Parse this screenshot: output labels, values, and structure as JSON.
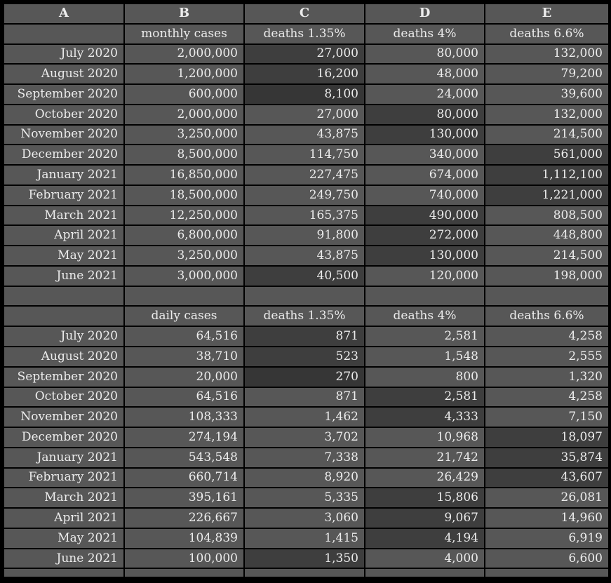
{
  "colors": {
    "grid": "#000000",
    "cell_base": "#575757",
    "cell_highlight": "#3e3e3e",
    "cell_highlight_darkest": "#363636",
    "text": "#ececec"
  },
  "spreadsheet": {
    "column_headers": [
      "A",
      "B",
      "C",
      "D",
      "E"
    ],
    "tables": [
      {
        "headers": {
          "b": "monthly cases",
          "c": "deaths 1.35%",
          "d": "deaths 4%",
          "e": "deaths 6.6%"
        },
        "rows": [
          {
            "label": "July 2020",
            "values": [
              "2,000,000",
              "27,000",
              "80,000",
              "132,000"
            ],
            "highlight": "C",
            "highlight_shade": "dark"
          },
          {
            "label": "August 2020",
            "values": [
              "1,200,000",
              "16,200",
              "48,000",
              "79,200"
            ],
            "highlight": "C",
            "highlight_shade": "dark"
          },
          {
            "label": "September 2020",
            "values": [
              "600,000",
              "8,100",
              "24,000",
              "39,600"
            ],
            "highlight": "C",
            "highlight_shade": "darkest"
          },
          {
            "label": "October 2020",
            "values": [
              "2,000,000",
              "27,000",
              "80,000",
              "132,000"
            ],
            "highlight": "D",
            "highlight_shade": "dark"
          },
          {
            "label": "November 2020",
            "values": [
              "3,250,000",
              "43,875",
              "130,000",
              "214,500"
            ],
            "highlight": "D",
            "highlight_shade": "dark"
          },
          {
            "label": "December 2020",
            "values": [
              "8,500,000",
              "114,750",
              "340,000",
              "561,000"
            ],
            "highlight": "E",
            "highlight_shade": "dark"
          },
          {
            "label": "January 2021",
            "values": [
              "16,850,000",
              "227,475",
              "674,000",
              "1,112,100"
            ],
            "highlight": "E",
            "highlight_shade": "dark"
          },
          {
            "label": "February 2021",
            "values": [
              "18,500,000",
              "249,750",
              "740,000",
              "1,221,000"
            ],
            "highlight": "E",
            "highlight_shade": "dark"
          },
          {
            "label": "March 2021",
            "values": [
              "12,250,000",
              "165,375",
              "490,000",
              "808,500"
            ],
            "highlight": "D",
            "highlight_shade": "dark"
          },
          {
            "label": "April 2021",
            "values": [
              "6,800,000",
              "91,800",
              "272,000",
              "448,800"
            ],
            "highlight": "D",
            "highlight_shade": "dark"
          },
          {
            "label": "May 2021",
            "values": [
              "3,250,000",
              "43,875",
              "130,000",
              "214,500"
            ],
            "highlight": "D",
            "highlight_shade": "dark"
          },
          {
            "label": "June 2021",
            "values": [
              "3,000,000",
              "40,500",
              "120,000",
              "198,000"
            ],
            "highlight": "C",
            "highlight_shade": "dark"
          }
        ]
      },
      {
        "headers": {
          "b": "daily cases",
          "c": "deaths 1.35%",
          "d": "deaths 4%",
          "e": "deaths 6.6%"
        },
        "rows": [
          {
            "label": "July 2020",
            "values": [
              "64,516",
              "871",
              "2,581",
              "4,258"
            ],
            "highlight": "C",
            "highlight_shade": "dark"
          },
          {
            "label": "August 2020",
            "values": [
              "38,710",
              "523",
              "1,548",
              "2,555"
            ],
            "highlight": "C",
            "highlight_shade": "dark"
          },
          {
            "label": "September 2020",
            "values": [
              "20,000",
              "270",
              "800",
              "1,320"
            ],
            "highlight": "C",
            "highlight_shade": "darkest"
          },
          {
            "label": "October 2020",
            "values": [
              "64,516",
              "871",
              "2,581",
              "4,258"
            ],
            "highlight": "D",
            "highlight_shade": "dark"
          },
          {
            "label": "November 2020",
            "values": [
              "108,333",
              "1,462",
              "4,333",
              "7,150"
            ],
            "highlight": "D",
            "highlight_shade": "dark"
          },
          {
            "label": "December 2020",
            "values": [
              "274,194",
              "3,702",
              "10,968",
              "18,097"
            ],
            "highlight": "E",
            "highlight_shade": "dark"
          },
          {
            "label": "January 2021",
            "values": [
              "543,548",
              "7,338",
              "21,742",
              "35,874"
            ],
            "highlight": "E",
            "highlight_shade": "dark"
          },
          {
            "label": "February 2021",
            "values": [
              "660,714",
              "8,920",
              "26,429",
              "43,607"
            ],
            "highlight": "E",
            "highlight_shade": "dark"
          },
          {
            "label": "March 2021",
            "values": [
              "395,161",
              "5,335",
              "15,806",
              "26,081"
            ],
            "highlight": "D",
            "highlight_shade": "dark"
          },
          {
            "label": "April 2021",
            "values": [
              "226,667",
              "3,060",
              "9,067",
              "14,960"
            ],
            "highlight": "D",
            "highlight_shade": "dark"
          },
          {
            "label": "May 2021",
            "values": [
              "104,839",
              "1,415",
              "4,194",
              "6,919"
            ],
            "highlight": "D",
            "highlight_shade": "dark"
          },
          {
            "label": "June 2021",
            "values": [
              "100,000",
              "1,350",
              "4,000",
              "6,600"
            ],
            "highlight": "C",
            "highlight_shade": "dark"
          }
        ]
      }
    ]
  }
}
